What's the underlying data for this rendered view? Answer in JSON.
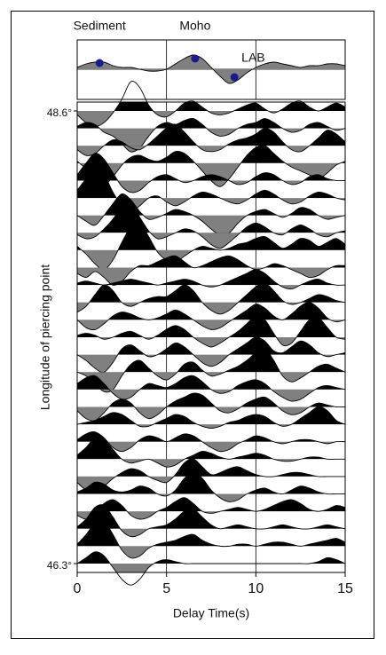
{
  "chart_data": {
    "type": "wiggle",
    "x_label": "Delay Time(s)",
    "y_label": "Longitude of piercing point",
    "xlim": [
      0,
      15
    ],
    "xticks": [
      0,
      5,
      10,
      15
    ],
    "ylim": [
      46.3,
      48.6
    ],
    "yticks": [
      {
        "value": 48.6,
        "label": "48.6°"
      },
      {
        "value": 46.3,
        "label": "46.3°"
      }
    ],
    "grid": true,
    "positive_color": "#000000",
    "negative_color": "#808080",
    "x": [
      0,
      0.5,
      1,
      1.5,
      2,
      2.5,
      3,
      3.5,
      4,
      4.5,
      5,
      5.5,
      6,
      6.5,
      7,
      7.5,
      8,
      8.5,
      9,
      9.5,
      10,
      10.5,
      11,
      11.5,
      12,
      12.5,
      13,
      13.5,
      14,
      14.5,
      15
    ],
    "series": [
      {
        "values": [
          -0.2,
          -0.6,
          -0.8,
          -0.6,
          -0.1,
          0.6,
          1.5,
          1.2,
          0.3,
          -0.2,
          -0.3,
          0,
          0.4,
          0.5,
          0.2,
          -0.1,
          -0.2,
          -0.1,
          0.1,
          0.3,
          0.4,
          0.1,
          -0.1,
          0.1,
          0.4,
          0.5,
          0.2,
          0,
          0.2,
          0.4,
          0.2
        ]
      },
      {
        "values": [
          0.1,
          0.3,
          0.2,
          -0.2,
          -0.4,
          -0.8,
          -1.2,
          -1.0,
          -0.4,
          0.1,
          0.3,
          0.2,
          0.4,
          0.5,
          0.2,
          -0.2,
          -0.4,
          -0.3,
          0,
          0.2,
          0.3,
          0.5,
          0.3,
          0,
          -0.2,
          -0.1,
          0.2,
          0.3,
          0.1,
          -0.1,
          0
        ]
      },
      {
        "values": [
          -0.2,
          -0.5,
          -0.4,
          0,
          0.3,
          0.2,
          -0.1,
          -0.2,
          0.1,
          0.5,
          0.9,
          1.1,
          0.7,
          0.2,
          -0.2,
          -0.3,
          -0.2,
          0.1,
          0.3,
          0.4,
          0.6,
          0.9,
          0.7,
          0.2,
          -0.2,
          -0.3,
          0,
          0.4,
          0.8,
          0.6,
          0.2
        ]
      },
      {
        "values": [
          0.1,
          -0.3,
          -0.8,
          -1.1,
          -0.7,
          -0.1,
          0.3,
          0.4,
          0.2,
          0.1,
          0.3,
          0.6,
          0.5,
          0.1,
          -0.4,
          -0.9,
          -1.2,
          -0.8,
          -0.2,
          0.4,
          0.8,
          0.9,
          0.5,
          0.1,
          -0.2,
          -0.4,
          -0.6,
          -0.8,
          -0.5,
          -0.1,
          0.1
        ]
      },
      {
        "values": [
          0.3,
          0.9,
          1.4,
          1.1,
          0.4,
          -0.3,
          -0.6,
          -0.5,
          -0.1,
          0.2,
          0.3,
          0.1,
          -0.1,
          0,
          0.2,
          0.3,
          0.2,
          0,
          -0.2,
          -0.1,
          0.2,
          0.4,
          0.3,
          0,
          -0.2,
          -0.1,
          0.2,
          0.3,
          0.1,
          0,
          0
        ]
      },
      {
        "values": [
          0.4,
          1.0,
          1.6,
          1.2,
          0.3,
          -0.4,
          -0.7,
          -0.4,
          0,
          0.1,
          -0.2,
          -0.4,
          -0.2,
          0.1,
          0.3,
          0.2,
          0,
          -0.2,
          -0.3,
          -0.1,
          0.2,
          0.4,
          0.2,
          -0.1,
          -0.3,
          -0.2,
          0.1,
          0.3,
          0.2,
          0,
          -0.1
        ]
      },
      {
        "values": [
          0,
          -0.3,
          -0.5,
          0,
          0.6,
          1.1,
          0.8,
          0.2,
          -0.2,
          -0.1,
          0.1,
          0.3,
          0.2,
          0,
          -0.3,
          -0.7,
          -1.0,
          -0.9,
          -0.4,
          0,
          0.2,
          0.3,
          0.1,
          -0.1,
          0.1,
          0.4,
          0.3,
          0,
          -0.2,
          -0.1,
          0
        ]
      },
      {
        "values": [
          -0.1,
          -0.3,
          -0.2,
          0.2,
          0.7,
          1.3,
          1.5,
          0.8,
          0.1,
          -0.3,
          -0.2,
          0,
          0.2,
          0.1,
          -0.2,
          -0.6,
          -0.8,
          -0.5,
          -0.1,
          0.3,
          0.5,
          0.3,
          0,
          -0.1,
          0.2,
          0.4,
          0.2,
          -0.1,
          -0.2,
          0,
          0.1
        ]
      },
      {
        "values": [
          0.2,
          -0.2,
          -0.7,
          -1.0,
          -0.5,
          0.4,
          1.2,
          1.4,
          0.7,
          -0.1,
          -0.5,
          -0.6,
          -0.3,
          0,
          0.2,
          0.1,
          0,
          0.1,
          0.3,
          0.4,
          0.6,
          0.7,
          0.4,
          0.1,
          0.3,
          0.6,
          0.5,
          0.2,
          0.4,
          0.6,
          0.3
        ]
      },
      {
        "values": [
          -0.3,
          -0.5,
          -0.2,
          -0.5,
          -0.9,
          -0.7,
          -0.2,
          0.1,
          0.1,
          0.3,
          0.5,
          0.6,
          0.3,
          0,
          0.1,
          0.3,
          0.5,
          0.6,
          0.4,
          0.1,
          -0.1,
          0,
          0.2,
          0.1,
          -0.1,
          -0.3,
          -0.5,
          -0.4,
          -0.1,
          0.1,
          0.1
        ]
      },
      {
        "values": [
          0.1,
          0.2,
          0.1,
          0,
          0.1,
          0.2,
          0.3,
          0.2,
          0.1,
          0,
          0.1,
          0.2,
          0.3,
          0.2,
          0,
          -0.1,
          0,
          0.2,
          0.4,
          0.6,
          0.8,
          0.6,
          0.2,
          -0.1,
          -0.2,
          0,
          0.2,
          0.3,
          0.1,
          0,
          0
        ]
      },
      {
        "values": [
          -0.5,
          -0.2,
          0.4,
          0.9,
          0.6,
          0,
          -0.2,
          0,
          0.2,
          0.3,
          0.3,
          0.6,
          0.9,
          0.6,
          0,
          -0.4,
          -0.6,
          -0.4,
          0,
          0.4,
          0.8,
          1.0,
          0.6,
          0.1,
          -0.1,
          0,
          0.2,
          0.4,
          0.3,
          0.1,
          0
        ]
      },
      {
        "values": [
          0,
          -0.4,
          -0.5,
          -0.2,
          0.2,
          0.4,
          0.3,
          0.1,
          0,
          0.1,
          0.3,
          0.5,
          0.3,
          0,
          -0.3,
          -0.5,
          -0.4,
          -0.1,
          0.2,
          0.5,
          0.8,
          0.6,
          0.2,
          0,
          0.3,
          0.7,
          0.9,
          0.6,
          0.1,
          -0.1,
          0
        ]
      },
      {
        "values": [
          0.1,
          0.2,
          0.1,
          -0.1,
          0,
          0.2,
          0.3,
          0.1,
          -0.1,
          0.1,
          0.4,
          0.6,
          0.4,
          0,
          -0.3,
          -0.5,
          -0.3,
          0,
          0.3,
          0.7,
          1.1,
          0.9,
          0.2,
          -0.4,
          -0.3,
          0.3,
          0.9,
          1.0,
          0.5,
          0,
          -0.1
        ]
      },
      {
        "values": [
          0,
          -0.3,
          -0.7,
          -0.9,
          -0.4,
          0.3,
          0.5,
          0.2,
          -0.1,
          0,
          0.3,
          0.6,
          0.4,
          0,
          -0.4,
          -0.6,
          -0.4,
          0,
          0.3,
          0.6,
          0.9,
          0.7,
          0.2,
          0.1,
          0.4,
          0.7,
          0.5,
          0.1,
          -0.1,
          0,
          0.1
        ]
      },
      {
        "values": [
          0,
          -0.2,
          -0.6,
          -1.0,
          -0.9,
          -0.2,
          0.4,
          0.6,
          0.2,
          -0.2,
          -0.4,
          -0.1,
          0.4,
          0.5,
          0.1,
          -0.2,
          -0.1,
          0.1,
          0.3,
          0.6,
          1.0,
          1.2,
          0.6,
          -0.2,
          -0.5,
          -0.3,
          0,
          0.3,
          0.4,
          0.2,
          0
        ]
      },
      {
        "values": [
          0.3,
          0.6,
          0.7,
          0.3,
          -0.2,
          -0.5,
          -0.4,
          0,
          0.3,
          0.2,
          0.1,
          0.3,
          0.6,
          0.7,
          0.4,
          0,
          -0.2,
          -0.1,
          0.2,
          0.4,
          0.5,
          0.3,
          -0.1,
          -0.4,
          -0.6,
          -0.5,
          -0.2,
          0.1,
          0.2,
          0.1,
          0
        ]
      },
      {
        "values": [
          -0.2,
          -0.6,
          -0.7,
          -0.3,
          0.2,
          0.4,
          0.2,
          -0.3,
          -0.6,
          -0.4,
          0,
          0.3,
          0.5,
          0.7,
          0.6,
          0.2,
          -0.2,
          -0.3,
          -0.1,
          0.2,
          0.4,
          0.5,
          0.2,
          -0.2,
          -0.4,
          -0.3,
          0,
          0.2,
          0.1,
          0,
          0
        ]
      },
      {
        "values": [
          0,
          0.1,
          0.2,
          0.4,
          0.6,
          0.5,
          0.2,
          -0.1,
          -0.1,
          0.1,
          0.3,
          0.5,
          0.4,
          0.1,
          -0.1,
          -0.2,
          -0.1,
          0.1,
          0.2,
          0.4,
          0.5,
          0.4,
          0.1,
          -0.1,
          0,
          0.3,
          0.6,
          0.9,
          0.7,
          0.2,
          0
        ]
      },
      {
        "values": [
          0.1,
          0.4,
          0.5,
          0.2,
          -0.3,
          -0.5,
          -0.3,
          0.1,
          0.3,
          0.2,
          0,
          0.2,
          0.4,
          0.3,
          0,
          -0.3,
          -0.5,
          -0.4,
          -0.1,
          0.1,
          0.3,
          0.2,
          0,
          -0.1,
          0,
          0.1,
          0.1,
          0,
          -0.1,
          0,
          0
        ]
      },
      {
        "values": [
          0.2,
          0.6,
          1.1,
          1.0,
          0.5,
          0,
          -0.2,
          -0.1,
          0,
          -0.2,
          -0.4,
          -0.3,
          0,
          0.2,
          0.4,
          0.3,
          0.1,
          0,
          0.1,
          0.2,
          0.3,
          0.2,
          0,
          -0.1,
          -0.1,
          0,
          0.1,
          0.1,
          0,
          0,
          0
        ]
      },
      {
        "values": [
          -0.3,
          -0.7,
          -0.8,
          -0.5,
          -0.1,
          0.2,
          0.4,
          0.3,
          0,
          -0.2,
          -0.3,
          0.1,
          0.7,
          0.9,
          0.5,
          0.1,
          0.2,
          0.4,
          0.5,
          0.3,
          0.1,
          0,
          0,
          0.1,
          0.2,
          0.2,
          0.1,
          0,
          0,
          0,
          0
        ]
      },
      {
        "values": [
          0.1,
          0.3,
          0.6,
          0.5,
          0.2,
          0.1,
          0.2,
          0.4,
          0.3,
          0,
          -0.1,
          0.2,
          0.8,
          1.1,
          0.8,
          0.2,
          -0.2,
          -0.4,
          -0.3,
          0,
          0.2,
          0.3,
          0.1,
          0,
          0.2,
          0.4,
          0.3,
          0.1,
          0,
          0,
          0
        ]
      },
      {
        "values": [
          -0.2,
          -0.4,
          -0.1,
          0.4,
          0.6,
          0.3,
          -0.2,
          -0.4,
          -0.3,
          0,
          0.2,
          0.5,
          0.7,
          0.4,
          0,
          -0.1,
          0,
          0.1,
          0.2,
          0.1,
          0,
          0.1,
          0.3,
          0.5,
          0.6,
          0.4,
          0.1,
          0,
          0.1,
          0.3,
          0.2
        ]
      },
      {
        "values": [
          0.1,
          0.5,
          1.1,
          1.2,
          0.6,
          -0.1,
          -0.4,
          -0.3,
          0,
          0.1,
          0.2,
          0.5,
          0.9,
          1.0,
          0.6,
          0.2,
          0,
          0.1,
          0.2,
          0.1,
          0,
          0,
          0.1,
          0.2,
          0.1,
          0,
          0,
          0.1,
          0.2,
          0.1,
          0
        ]
      },
      {
        "values": [
          0.1,
          0.6,
          1.2,
          1.3,
          0.6,
          -0.2,
          -0.6,
          -0.5,
          -0.1,
          0.1,
          0.2,
          0.3,
          0.5,
          0.6,
          0.3,
          0.1,
          0,
          0,
          0.1,
          0.1,
          0,
          0.1,
          0.2,
          0.2,
          0.1,
          0,
          0.1,
          0.2,
          0.3,
          0.4,
          0.2
        ]
      },
      {
        "values": [
          0,
          0.3,
          0.6,
          0.4,
          -0.2,
          -0.8,
          -1.1,
          -0.8,
          -0.2,
          0.1,
          0.2,
          0.1,
          0,
          0,
          0,
          0,
          0,
          0,
          0,
          0,
          0,
          0,
          0,
          0,
          0,
          0,
          0,
          0.1,
          0.3,
          0.2,
          0
        ]
      }
    ],
    "stack": {
      "color": "#808080",
      "values": [
        0.1,
        0.3,
        0.4,
        0.4,
        0.2,
        0.1,
        0.1,
        0,
        -0.1,
        -0.1,
        0,
        0.3,
        0.6,
        0.8,
        0.6,
        0.1,
        -0.4,
        -0.8,
        -0.6,
        -0.2,
        0.1,
        0.3,
        0.4,
        0.3,
        0.2,
        0.1,
        0.2,
        0.2,
        0.3,
        0.3,
        0.2
      ],
      "picks": [
        {
          "name": "Sediment",
          "x": 1.25,
          "y": 0.35,
          "color": "#1a1a8c"
        },
        {
          "name": "Moho",
          "x": 6.6,
          "y": 0.6,
          "color": "#1a1a8c"
        },
        {
          "name": "LAB",
          "x": 8.8,
          "y": -0.45,
          "color": "#1a1a8c"
        }
      ]
    }
  }
}
